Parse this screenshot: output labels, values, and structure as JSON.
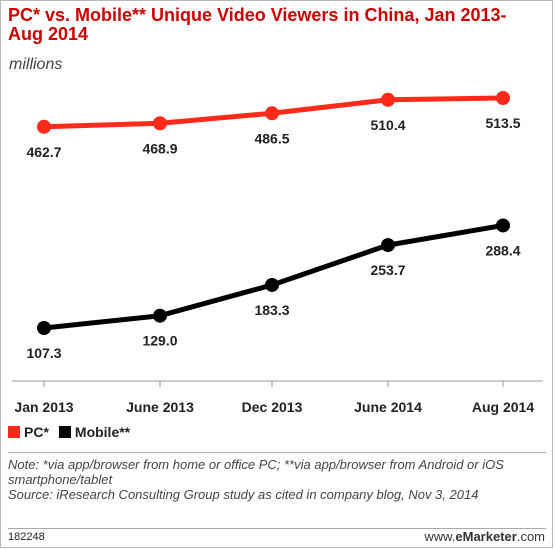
{
  "header": {
    "title": "PC* vs. Mobile** Unique Video Viewers in China, Jan 2013-Aug 2014",
    "subtitle": "millions"
  },
  "chart_data": {
    "type": "line",
    "title": "PC* vs. Mobile** Unique Video Viewers in China, Jan 2013-Aug 2014",
    "subtitle": "millions",
    "categories": [
      "Jan 2013",
      "June 2013",
      "Dec 2013",
      "June 2014",
      "Aug 2014"
    ],
    "series": [
      {
        "name": "PC*",
        "color": "#ff2a1a",
        "values": [
          462.7,
          468.9,
          486.5,
          510.4,
          513.5
        ],
        "labels": [
          "462.7",
          "468.9",
          "486.5",
          "510.4",
          "513.5"
        ]
      },
      {
        "name": "Mobile**",
        "color": "#000000",
        "values": [
          107.3,
          129.0,
          183.3,
          253.7,
          288.4
        ],
        "labels": [
          "107.3",
          "129.0",
          "183.3",
          "253.7",
          "288.4"
        ]
      }
    ],
    "xlabel": "",
    "ylabel": "",
    "grid": false,
    "legend": "bottom-left"
  },
  "notes": {
    "note": "Note: *via app/browser from home or office PC; **via app/browser from Android or iOS smartphone/tablet",
    "source": "Source: iResearch Consulting Group study as cited in company blog, Nov 3, 2014"
  },
  "footer": {
    "id": "182248",
    "brand_prefix": "www.",
    "brand_name": "eMarketer",
    "brand_suffix": ".com"
  }
}
